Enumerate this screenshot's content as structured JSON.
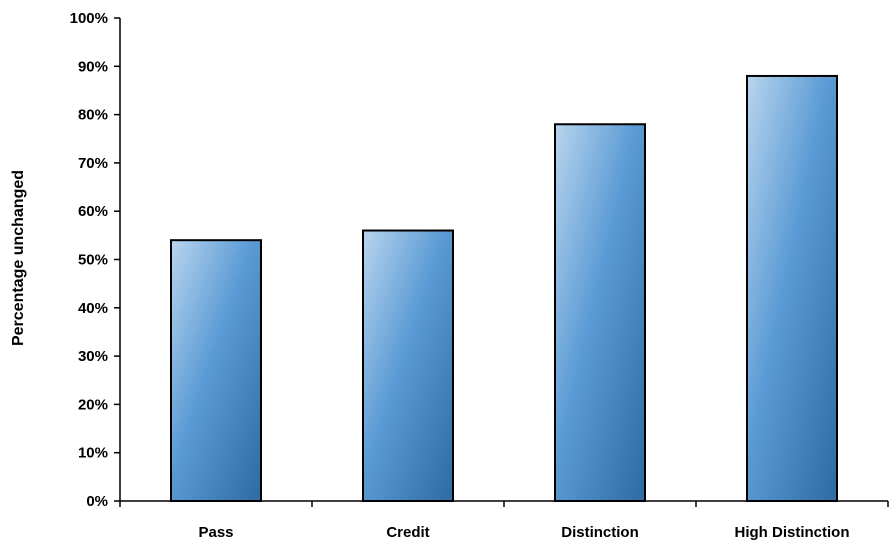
{
  "chart_data": {
    "type": "bar",
    "categories": [
      "Pass",
      "Credit",
      "Distinction",
      "High Distinction"
    ],
    "values": [
      54,
      56,
      78,
      88
    ],
    "ylabel": "Percentage unchanged",
    "xlabel": "",
    "ylim": [
      0,
      100
    ],
    "ytick_step": 10,
    "ytick_suffix": "%",
    "grid": false,
    "legend": "none",
    "colors": {
      "bar_light": "#b9d5ee",
      "bar_mid": "#5b9bd5",
      "bar_dark": "#2e6aa4",
      "bar_outline": "#000000",
      "axis": "#000000"
    }
  }
}
